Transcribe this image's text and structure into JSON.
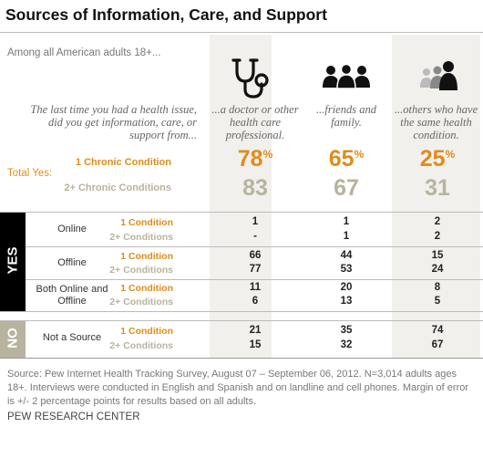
{
  "title": "Sources of Information, Care, and Support",
  "subtitle": "Among all American adults 18+...",
  "question": "The last time you had a health issue, did you get information, care, or support from...",
  "columns": [
    {
      "desc": "...a doctor or other health care professional.",
      "icon": "stethoscope-icon"
    },
    {
      "desc": "...friends and family.",
      "icon": "people-group-icon"
    },
    {
      "desc": "...others who have the same health condition.",
      "icon": "people-group-icon"
    }
  ],
  "total_yes": {
    "label": "Total Yes:",
    "one_label": "1 Chronic Condition",
    "two_label": "2+ Chronic Conditions",
    "one": [
      "78",
      "65",
      "25"
    ],
    "two": [
      "83",
      "67",
      "31"
    ],
    "pct": "%"
  },
  "yes_label": "YES",
  "no_label": "NO",
  "rows": [
    {
      "name": "Online",
      "one_label": "1 Condition",
      "two_label": "2+ Conditions",
      "one": [
        "1",
        "1",
        "2"
      ],
      "two": [
        "-",
        "1",
        "2"
      ]
    },
    {
      "name": "Offline",
      "one_label": "1 Condition",
      "two_label": "2+ Conditions",
      "one": [
        "66",
        "44",
        "15"
      ],
      "two": [
        "77",
        "53",
        "24"
      ]
    },
    {
      "name": "Both Online and Offline",
      "one_label": "1 Condition",
      "two_label": "2+ Conditions",
      "one": [
        "11",
        "20",
        "8"
      ],
      "two": [
        "6",
        "13",
        "5"
      ]
    },
    {
      "name": "Not a Source",
      "one_label": "1 Condition",
      "two_label": "2+ Conditions",
      "one": [
        "21",
        "35",
        "74"
      ],
      "two": [
        "15",
        "32",
        "67"
      ]
    }
  ],
  "source": "Source: Pew Internet Health Tracking Survey, August 07 – September 06, 2012. N=3,014 adults ages 18+. Interviews were conducted in English and Spanish and on landline and cell phones.  Margin of error is +/- 2 percentage points for results based on all adults.",
  "brand": "PEW RESEARCH CENTER",
  "colors": {
    "orange": "#e08c1a",
    "tan": "#b8b39e",
    "shade": "#f1f0ec"
  },
  "chart_data": {
    "type": "table",
    "title": "Sources of Information, Care, and Support",
    "subtitle": "Among all American adults 18+...",
    "columns": [
      "...a doctor or other health care professional.",
      "...friends and family.",
      "...others who have the same health condition."
    ],
    "total_yes": {
      "1 Chronic Condition": [
        78,
        65,
        25
      ],
      "2+ Chronic Conditions": [
        83,
        67,
        31
      ]
    },
    "rows": [
      {
        "group": "YES",
        "source": "Online",
        "1 Condition": [
          1,
          1,
          2
        ],
        "2+ Conditions": [
          null,
          1,
          2
        ]
      },
      {
        "group": "YES",
        "source": "Offline",
        "1 Condition": [
          66,
          44,
          15
        ],
        "2+ Conditions": [
          77,
          53,
          24
        ]
      },
      {
        "group": "YES",
        "source": "Both Online and Offline",
        "1 Condition": [
          11,
          20,
          8
        ],
        "2+ Conditions": [
          6,
          13,
          5
        ]
      },
      {
        "group": "NO",
        "source": "Not a Source",
        "1 Condition": [
          21,
          35,
          74
        ],
        "2+ Conditions": [
          15,
          32,
          67
        ]
      }
    ]
  }
}
